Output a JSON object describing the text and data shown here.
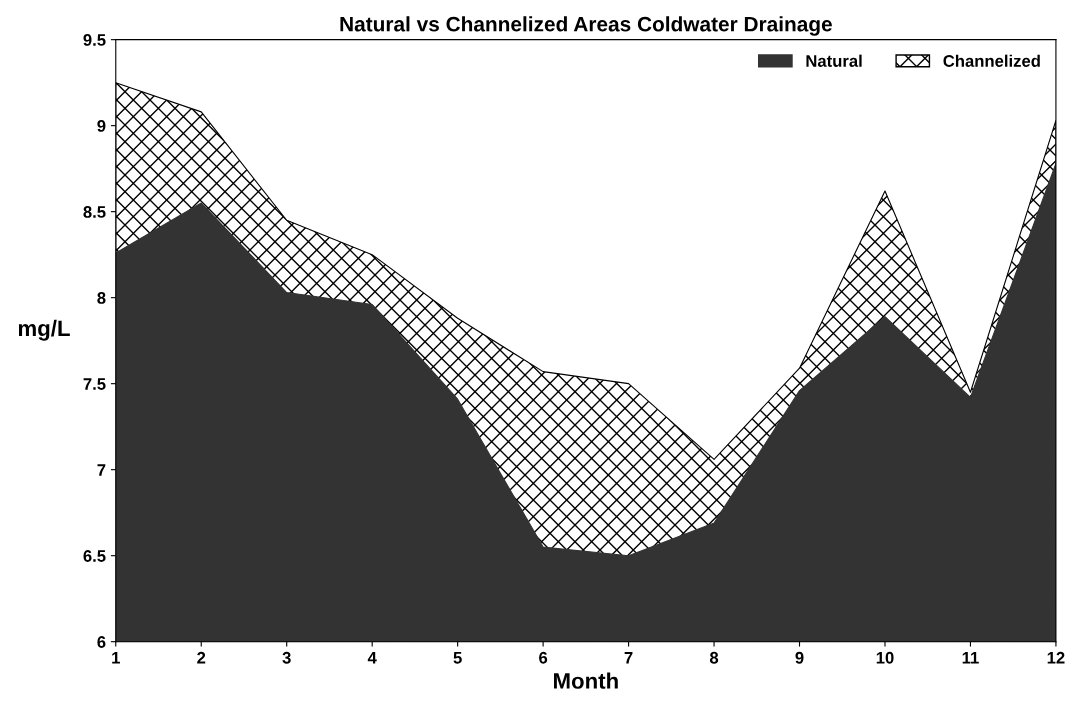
{
  "chart_data": {
    "type": "area",
    "title": "Natural vs Channelized Areas Coldwater Drainage",
    "xlabel": "Month",
    "ylabel": "mg/L",
    "x": [
      1,
      2,
      3,
      4,
      5,
      6,
      7,
      8,
      9,
      10,
      11,
      12
    ],
    "series": [
      {
        "name": "Channelized",
        "color": "#000000",
        "values": [
          9.25,
          9.08,
          8.45,
          8.25,
          7.88,
          7.57,
          7.5,
          7.06,
          7.59,
          8.62,
          7.45,
          9.03
        ]
      },
      {
        "name": "Natural",
        "color": "#333333",
        "values": [
          8.26,
          8.55,
          8.03,
          7.96,
          7.41,
          6.55,
          6.5,
          6.69,
          7.46,
          7.89,
          7.42,
          8.78
        ]
      }
    ],
    "xlim": [
      1,
      12
    ],
    "xticks": [
      1,
      2,
      3,
      4,
      5,
      6,
      7,
      8,
      9,
      10,
      11,
      12
    ],
    "ylim": [
      6,
      9.5
    ],
    "yticks": [
      6,
      6.5,
      7,
      7.5,
      8,
      8.5,
      9,
      9.5
    ],
    "grid": false,
    "legend": "top right"
  }
}
